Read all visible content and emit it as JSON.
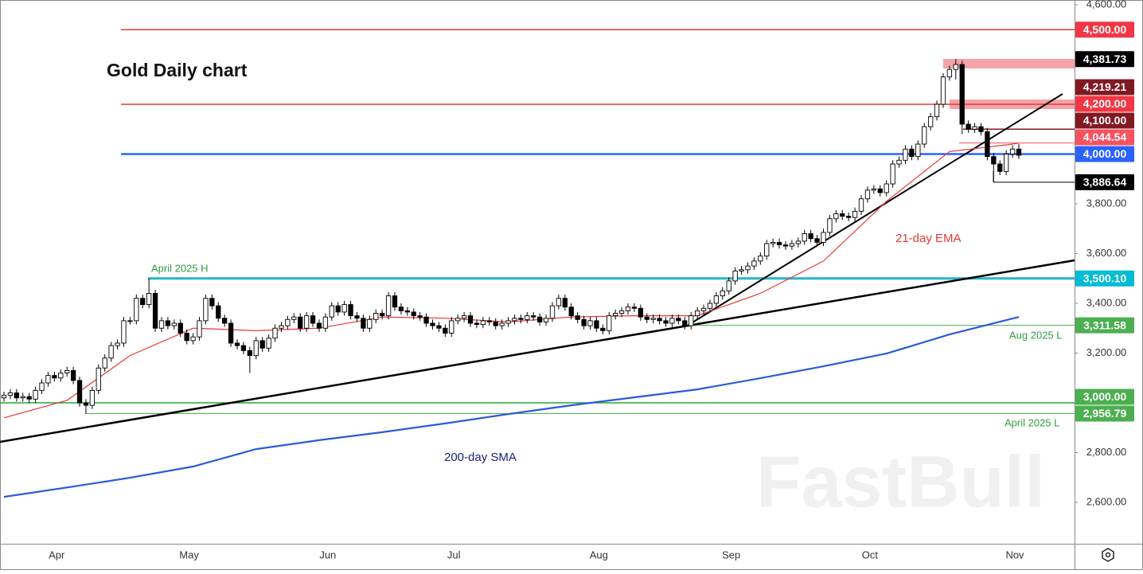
{
  "chart_data": {
    "type": "candlestick",
    "title": "Gold Daily chart",
    "watermark": "FastBull",
    "categories": [
      null,
      null,
      null,
      null,
      null,
      null,
      null,
      null,
      null,
      "Apr",
      null,
      null,
      null,
      null,
      null,
      null,
      null,
      null,
      null,
      null,
      null,
      null,
      null,
      null,
      null,
      null,
      null,
      null,
      null,
      null,
      "May",
      null,
      null,
      null,
      null,
      null,
      null,
      null,
      null,
      null,
      null,
      null,
      null,
      null,
      null,
      null,
      null,
      null,
      null,
      null,
      null,
      null,
      "Jun",
      null,
      null,
      null,
      null,
      null,
      null,
      null,
      null,
      null,
      null,
      null,
      null,
      null,
      null,
      null,
      null,
      null,
      null,
      null,
      "Jul",
      null,
      null,
      null,
      null,
      null,
      null,
      null,
      null,
      null,
      null,
      null,
      null,
      null,
      null,
      null,
      null,
      null,
      null,
      null,
      null,
      null,
      null,
      "Aug",
      null,
      null,
      null,
      null,
      null,
      null,
      null,
      null,
      null,
      null,
      null,
      null,
      null,
      null,
      null,
      null,
      null,
      null,
      null,
      null,
      "Sep",
      null,
      null,
      null,
      null,
      null,
      null,
      null,
      null,
      null,
      null,
      null,
      null,
      null,
      null,
      null,
      null,
      null,
      null,
      null,
      null,
      null,
      "Oct",
      null,
      null,
      null,
      null,
      null,
      null,
      null,
      null,
      null,
      null,
      null,
      null,
      null,
      null,
      null,
      null,
      null,
      null,
      null,
      null,
      null,
      null,
      "Nov"
    ],
    "ohlc": [
      [
        3020,
        3045,
        3005,
        3030
      ],
      [
        3030,
        3055,
        3015,
        3040
      ],
      [
        3040,
        3055,
        3005,
        3020
      ],
      [
        3020,
        3040,
        3005,
        3025
      ],
      [
        3025,
        3040,
        3000,
        3015
      ],
      [
        3015,
        3065,
        3000,
        3050
      ],
      [
        3050,
        3095,
        3035,
        3080
      ],
      [
        3080,
        3125,
        3065,
        3110
      ],
      [
        3110,
        3125,
        3085,
        3100
      ],
      [
        3100,
        3135,
        3085,
        3120
      ],
      [
        3120,
        3145,
        3105,
        3130
      ],
      [
        3130,
        3145,
        3075,
        3090
      ],
      [
        3090,
        3105,
        2985,
        3000
      ],
      [
        3000,
        3015,
        2957,
        2990
      ],
      [
        2990,
        3065,
        2975,
        3050
      ],
      [
        3050,
        3155,
        3035,
        3140
      ],
      [
        3140,
        3195,
        3125,
        3180
      ],
      [
        3180,
        3245,
        3165,
        3230
      ],
      [
        3230,
        3255,
        3215,
        3240
      ],
      [
        3240,
        3345,
        3225,
        3330
      ],
      [
        3330,
        3345,
        3315,
        3330
      ],
      [
        3330,
        3435,
        3315,
        3420
      ],
      [
        3420,
        3435,
        3380,
        3395
      ],
      [
        3395,
        3500,
        3380,
        3440
      ],
      [
        3440,
        3455,
        3285,
        3300
      ],
      [
        3300,
        3345,
        3285,
        3330
      ],
      [
        3330,
        3345,
        3295,
        3310
      ],
      [
        3310,
        3335,
        3295,
        3320
      ],
      [
        3320,
        3335,
        3265,
        3280
      ],
      [
        3280,
        3295,
        3235,
        3250
      ],
      [
        3250,
        3280,
        3235,
        3265
      ],
      [
        3265,
        3345,
        3250,
        3330
      ],
      [
        3330,
        3435,
        3315,
        3420
      ],
      [
        3420,
        3435,
        3375,
        3390
      ],
      [
        3390,
        3405,
        3325,
        3340
      ],
      [
        3340,
        3355,
        3305,
        3320
      ],
      [
        3320,
        3335,
        3225,
        3240
      ],
      [
        3240,
        3255,
        3215,
        3230
      ],
      [
        3230,
        3245,
        3195,
        3210
      ],
      [
        3210,
        3225,
        3120,
        3190
      ],
      [
        3190,
        3265,
        3175,
        3250
      ],
      [
        3250,
        3265,
        3205,
        3220
      ],
      [
        3220,
        3275,
        3205,
        3260
      ],
      [
        3260,
        3315,
        3245,
        3300
      ],
      [
        3300,
        3325,
        3285,
        3310
      ],
      [
        3310,
        3350,
        3295,
        3335
      ],
      [
        3335,
        3360,
        3320,
        3345
      ],
      [
        3345,
        3360,
        3285,
        3300
      ],
      [
        3300,
        3365,
        3285,
        3350
      ],
      [
        3350,
        3365,
        3305,
        3320
      ],
      [
        3320,
        3335,
        3285,
        3300
      ],
      [
        3300,
        3360,
        3285,
        3345
      ],
      [
        3345,
        3405,
        3330,
        3390
      ],
      [
        3390,
        3405,
        3350,
        3365
      ],
      [
        3365,
        3410,
        3350,
        3395
      ],
      [
        3395,
        3410,
        3335,
        3350
      ],
      [
        3350,
        3365,
        3325,
        3340
      ],
      [
        3340,
        3355,
        3285,
        3300
      ],
      [
        3300,
        3350,
        3285,
        3335
      ],
      [
        3335,
        3375,
        3320,
        3360
      ],
      [
        3360,
        3375,
        3335,
        3350
      ],
      [
        3350,
        3445,
        3335,
        3430
      ],
      [
        3430,
        3445,
        3370,
        3385
      ],
      [
        3385,
        3400,
        3355,
        3370
      ],
      [
        3370,
        3385,
        3350,
        3365
      ],
      [
        3365,
        3380,
        3335,
        3350
      ],
      [
        3350,
        3365,
        3330,
        3345
      ],
      [
        3345,
        3360,
        3305,
        3320
      ],
      [
        3320,
        3335,
        3295,
        3310
      ],
      [
        3310,
        3325,
        3285,
        3300
      ],
      [
        3300,
        3315,
        3265,
        3280
      ],
      [
        3280,
        3345,
        3265,
        3330
      ],
      [
        3330,
        3355,
        3315,
        3340
      ],
      [
        3340,
        3365,
        3325,
        3350
      ],
      [
        3350,
        3365,
        3305,
        3320
      ],
      [
        3320,
        3335,
        3300,
        3315
      ],
      [
        3315,
        3345,
        3300,
        3330
      ],
      [
        3330,
        3345,
        3310,
        3325
      ],
      [
        3325,
        3340,
        3295,
        3310
      ],
      [
        3310,
        3335,
        3295,
        3320
      ],
      [
        3320,
        3345,
        3305,
        3330
      ],
      [
        3330,
        3355,
        3315,
        3340
      ],
      [
        3340,
        3355,
        3320,
        3335
      ],
      [
        3335,
        3365,
        3320,
        3350
      ],
      [
        3350,
        3365,
        3330,
        3345
      ],
      [
        3345,
        3360,
        3310,
        3325
      ],
      [
        3325,
        3355,
        3310,
        3340
      ],
      [
        3340,
        3405,
        3325,
        3390
      ],
      [
        3390,
        3435,
        3375,
        3420
      ],
      [
        3420,
        3435,
        3370,
        3385
      ],
      [
        3385,
        3400,
        3335,
        3350
      ],
      [
        3350,
        3365,
        3320,
        3335
      ],
      [
        3335,
        3350,
        3295,
        3310
      ],
      [
        3310,
        3345,
        3295,
        3330
      ],
      [
        3330,
        3345,
        3285,
        3300
      ],
      [
        3300,
        3315,
        3275,
        3290
      ],
      [
        3290,
        3365,
        3275,
        3350
      ],
      [
        3350,
        3375,
        3335,
        3360
      ],
      [
        3360,
        3385,
        3345,
        3370
      ],
      [
        3370,
        3400,
        3355,
        3385
      ],
      [
        3385,
        3400,
        3365,
        3380
      ],
      [
        3380,
        3395,
        3330,
        3345
      ],
      [
        3345,
        3360,
        3320,
        3335
      ],
      [
        3335,
        3355,
        3320,
        3340
      ],
      [
        3340,
        3355,
        3315,
        3330
      ],
      [
        3330,
        3345,
        3305,
        3320
      ],
      [
        3320,
        3355,
        3305,
        3340
      ],
      [
        3340,
        3355,
        3315,
        3330
      ],
      [
        3330,
        3345,
        3295,
        3310
      ],
      [
        3310,
        3365,
        3295,
        3350
      ],
      [
        3350,
        3385,
        3335,
        3370
      ],
      [
        3370,
        3395,
        3355,
        3380
      ],
      [
        3380,
        3415,
        3365,
        3400
      ],
      [
        3400,
        3445,
        3385,
        3430
      ],
      [
        3430,
        3465,
        3415,
        3450
      ],
      [
        3450,
        3505,
        3435,
        3490
      ],
      [
        3490,
        3545,
        3475,
        3530
      ],
      [
        3530,
        3550,
        3515,
        3535
      ],
      [
        3535,
        3565,
        3520,
        3550
      ],
      [
        3550,
        3585,
        3535,
        3570
      ],
      [
        3570,
        3605,
        3555,
        3590
      ],
      [
        3590,
        3655,
        3575,
        3640
      ],
      [
        3640,
        3660,
        3625,
        3645
      ],
      [
        3645,
        3660,
        3620,
        3635
      ],
      [
        3635,
        3650,
        3615,
        3630
      ],
      [
        3630,
        3655,
        3615,
        3640
      ],
      [
        3640,
        3665,
        3625,
        3650
      ],
      [
        3650,
        3695,
        3635,
        3680
      ],
      [
        3680,
        3695,
        3645,
        3660
      ],
      [
        3660,
        3675,
        3630,
        3645
      ],
      [
        3645,
        3700,
        3630,
        3685
      ],
      [
        3685,
        3755,
        3670,
        3740
      ],
      [
        3740,
        3775,
        3725,
        3760
      ],
      [
        3760,
        3775,
        3735,
        3750
      ],
      [
        3750,
        3765,
        3730,
        3745
      ],
      [
        3745,
        3785,
        3730,
        3770
      ],
      [
        3770,
        3835,
        3755,
        3820
      ],
      [
        3820,
        3870,
        3805,
        3855
      ],
      [
        3855,
        3875,
        3840,
        3860
      ],
      [
        3860,
        3875,
        3830,
        3845
      ],
      [
        3845,
        3895,
        3830,
        3880
      ],
      [
        3880,
        3975,
        3865,
        3960
      ],
      [
        3960,
        3990,
        3945,
        3975
      ],
      [
        3975,
        4035,
        3960,
        4020
      ],
      [
        4020,
        4035,
        3975,
        3990
      ],
      [
        3990,
        4055,
        3975,
        4040
      ],
      [
        4040,
        4125,
        4025,
        4110
      ],
      [
        4110,
        4165,
        4095,
        4150
      ],
      [
        4150,
        4215,
        4135,
        4200
      ],
      [
        4200,
        4325,
        4185,
        4310
      ],
      [
        4310,
        4355,
        4295,
        4340
      ],
      [
        4340,
        4381.73,
        4300,
        4360
      ],
      [
        4360,
        4375,
        4080,
        4120
      ],
      [
        4120,
        4135,
        4085,
        4100
      ],
      [
        4100,
        4125,
        4085,
        4110
      ],
      [
        4110,
        4125,
        4075,
        4090
      ],
      [
        4090,
        4105,
        3975,
        3990
      ],
      [
        3990,
        4005,
        3886.64,
        3960
      ],
      [
        3960,
        3975,
        3915,
        3930
      ],
      [
        3930,
        4015,
        3915,
        4000
      ],
      [
        4000,
        4035,
        3985,
        4020
      ],
      [
        4020,
        4040,
        3980,
        3995
      ]
    ],
    "up_color": "#ffffff",
    "down_color": "#000000",
    "series": [
      {
        "name": "21-day EMA",
        "color": "#e53935",
        "x": [
          0,
          10,
          20,
          30,
          40,
          50,
          60,
          70,
          80,
          90,
          100,
          110,
          120,
          130,
          140,
          150,
          160,
          161
        ],
        "values": [
          2940,
          3010,
          3190,
          3300,
          3290,
          3300,
          3345,
          3340,
          3325,
          3345,
          3350,
          3350,
          3440,
          3570,
          3810,
          4010,
          4040,
          4044.54
        ]
      },
      {
        "name": "200-day SMA",
        "color": "#2a5bd7",
        "x": [
          0,
          10,
          20,
          30,
          40,
          50,
          60,
          70,
          80,
          90,
          100,
          110,
          120,
          130,
          140,
          150,
          160,
          161
        ],
        "values": [
          2622,
          2660,
          2699,
          2744,
          2814,
          2850,
          2882,
          2917,
          2955,
          2990,
          3022,
          3054,
          3099,
          3147,
          3198,
          3275,
          3339,
          3345
        ]
      }
    ],
    "levels": [
      {
        "value": 4500,
        "label": "4,500.00",
        "color": "#f23645"
      },
      {
        "value": 4381.73,
        "label": "4,381.73",
        "color": "#000000"
      },
      {
        "value": 4219.21,
        "label": "4,219.21",
        "color": "#801922"
      },
      {
        "value": 4200,
        "label": "4,200.00",
        "color": "#f23645"
      },
      {
        "value": 4100,
        "label": "4,100.00",
        "color": "#801922"
      },
      {
        "value": 4044.54,
        "label": "4,044.54",
        "color": "#f7525f"
      },
      {
        "value": 4000,
        "label": "4,000.00",
        "color": "#2962ff"
      },
      {
        "value": 3886.64,
        "label": "3,886.64",
        "color": "#000000"
      },
      {
        "value": 3500.1,
        "label": "3,500.10",
        "color": "#00bcd4"
      },
      {
        "value": 3311.58,
        "label": "3,311.58",
        "color": "#4caf50"
      },
      {
        "value": 3000,
        "label": "3,000.00",
        "color": "#4caf50"
      },
      {
        "value": 2956.79,
        "label": "2,956.79",
        "color": "#4caf50"
      }
    ],
    "annotations": [
      "April 2025 H",
      "Aug 2025 L",
      "April 2025 L"
    ],
    "ylim": [
      2433.6,
      4619.2
    ],
    "yticks": [
      {
        "value": 4600,
        "label": "4,600.00"
      },
      {
        "value": 3800,
        "label": "3,800.00"
      },
      {
        "value": 3600,
        "label": "3,600.00"
      },
      {
        "value": 3400,
        "label": "3,400.00"
      },
      {
        "value": 3200,
        "label": "3,200.00"
      },
      {
        "value": 2800,
        "label": "2,800.00"
      },
      {
        "value": 2600,
        "label": "2,600.00"
      }
    ],
    "grid": false
  }
}
